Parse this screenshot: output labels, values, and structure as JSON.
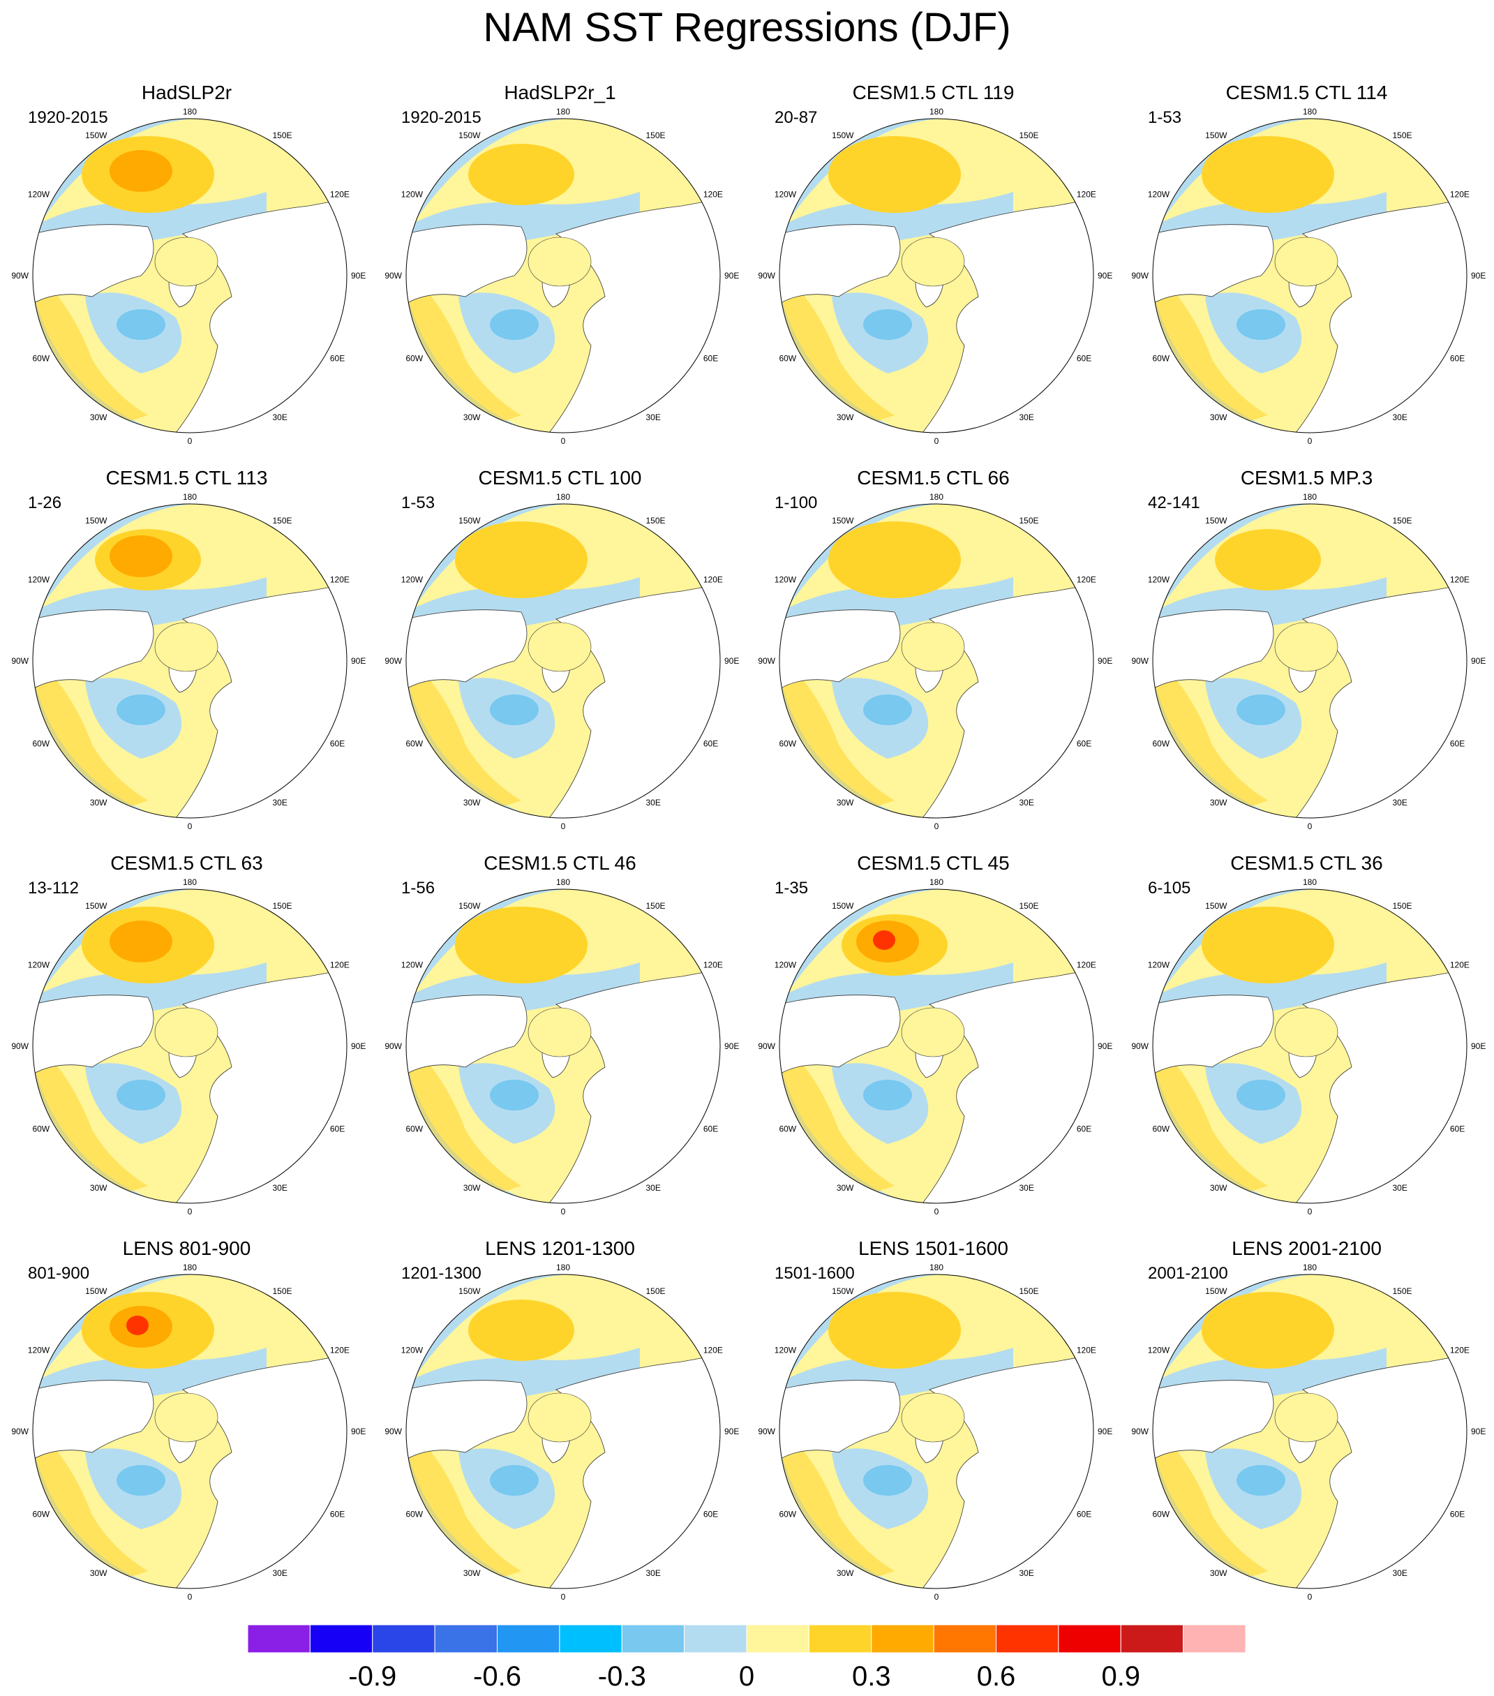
{
  "title": "NAM SST Regressions (DJF)",
  "panels": [
    {
      "title": "HadSLP2r",
      "period": "1920-2015"
    },
    {
      "title": "HadSLP2r_1",
      "period": "1920-2015"
    },
    {
      "title": "CESM1.5 CTL 119",
      "period": "20-87"
    },
    {
      "title": "CESM1.5 CTL 114",
      "period": "1-53"
    },
    {
      "title": "CESM1.5 CTL 113",
      "period": "1-26"
    },
    {
      "title": "CESM1.5 CTL 100",
      "period": "1-53"
    },
    {
      "title": "CESM1.5 CTL 66",
      "period": "1-100"
    },
    {
      "title": "CESM1.5 MP.3",
      "period": "42-141"
    },
    {
      "title": "CESM1.5 CTL 63",
      "period": "13-112"
    },
    {
      "title": "CESM1.5 CTL 46",
      "period": "1-56"
    },
    {
      "title": "CESM1.5 CTL 45",
      "period": "1-35"
    },
    {
      "title": "CESM1.5 CTL 36",
      "period": "6-105"
    },
    {
      "title": "LENS 801-900",
      "period": "801-900"
    },
    {
      "title": "LENS 1201-1300",
      "period": "1201-1300"
    },
    {
      "title": "LENS 1501-1600",
      "period": "1501-1600"
    },
    {
      "title": "LENS 2001-2100",
      "period": "2001-2100"
    }
  ],
  "map_labels": {
    "top": "180",
    "bottom": "0",
    "left": "90W",
    "right": "90E",
    "upper_left_1": "150W",
    "upper_left_2": "120W",
    "upper_right_1": "150E",
    "upper_right_2": "120E",
    "lower_left_1": "60W",
    "lower_left_2": "30W",
    "lower_right_1": "60E",
    "lower_right_2": "30E"
  },
  "colorbar": {
    "colors": [
      "#8a1fe6",
      "#1600f5",
      "#2a45e8",
      "#3a72e8",
      "#2196f3",
      "#00bfff",
      "#78c8f0",
      "#b4dcf0",
      "#fff59a",
      "#ffd42a",
      "#ffaa00",
      "#ff7700",
      "#ff3300",
      "#ee0000",
      "#cc1a1a",
      "#ffb3b3"
    ],
    "tick_labels": [
      "-0.9",
      "-0.6",
      "-0.3",
      "0",
      "0.3",
      "0.6",
      "0.9"
    ],
    "tick_values": [
      -0.9,
      -0.6,
      -0.3,
      0,
      0.3,
      0.6,
      0.9
    ]
  }
}
